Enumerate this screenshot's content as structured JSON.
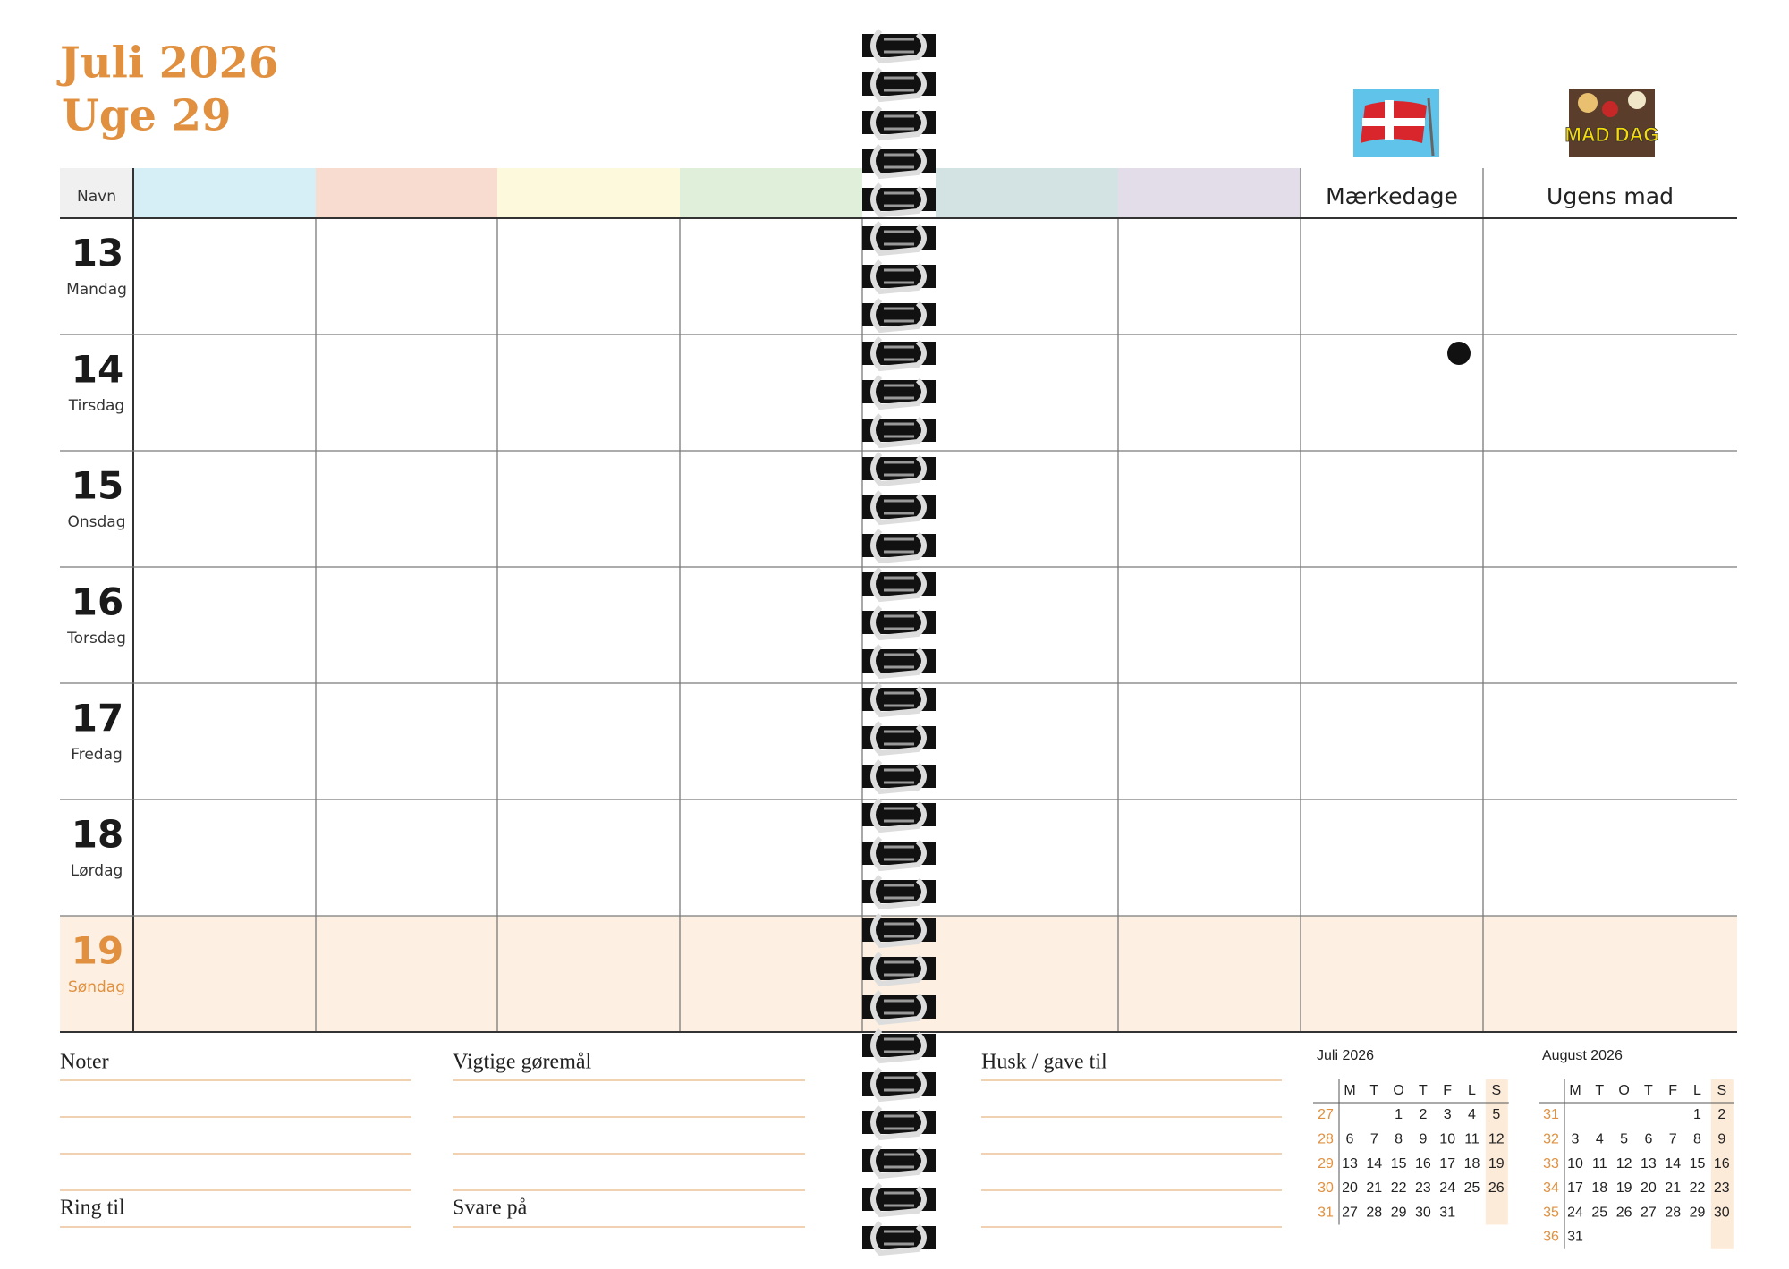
{
  "header": {
    "month": "Juli 2026",
    "week": "Uge 29",
    "name_label": "Navn",
    "columns": [
      "Mærkedage",
      "Ugens mad"
    ],
    "food_icon_text": "MAD DAG"
  },
  "days": [
    {
      "number": 13,
      "name": "Mandag"
    },
    {
      "number": 14,
      "name": "Tirsdag"
    },
    {
      "number": 15,
      "name": "Onsdag"
    },
    {
      "number": 16,
      "name": "Torsdag"
    },
    {
      "number": 17,
      "name": "Fredag"
    },
    {
      "number": 18,
      "name": "Lørdag"
    },
    {
      "number": 19,
      "name": "Søndag"
    }
  ],
  "notes": {
    "noter": "Noter",
    "ring_til": "Ring til",
    "vigtige": "Vigtige gøremål",
    "svare": "Svare på",
    "husk": "Husk / gave til"
  },
  "mini_calendars": [
    {
      "title": "Juli 2026",
      "weekdays": [
        "M",
        "T",
        "O",
        "T",
        "F",
        "L",
        "S"
      ],
      "weeks": [
        {
          "number": 27,
          "days": [
            null,
            null,
            1,
            2,
            3,
            4,
            5
          ]
        },
        {
          "number": 28,
          "days": [
            6,
            7,
            8,
            9,
            10,
            11,
            12
          ]
        },
        {
          "number": 29,
          "days": [
            13,
            14,
            15,
            16,
            17,
            18,
            19
          ]
        },
        {
          "number": 30,
          "days": [
            20,
            21,
            22,
            23,
            24,
            25,
            26
          ]
        },
        {
          "number": 31,
          "days": [
            27,
            28,
            29,
            30,
            31
          ]
        }
      ]
    },
    {
      "title": "August 2026",
      "weekdays": [
        "M",
        "T",
        "O",
        "T",
        "F",
        "L",
        "S"
      ],
      "weeks": [
        {
          "number": 31,
          "days": [
            null,
            null,
            null,
            null,
            null,
            1,
            2
          ]
        },
        {
          "number": 32,
          "days": [
            3,
            4,
            5,
            6,
            7,
            8,
            9
          ]
        },
        {
          "number": 33,
          "days": [
            10,
            11,
            12,
            13,
            14,
            15,
            16
          ]
        },
        {
          "number": 34,
          "days": [
            17,
            18,
            19,
            20,
            21,
            22,
            23
          ]
        },
        {
          "number": 35,
          "days": [
            24,
            25,
            26,
            27,
            28,
            29,
            30
          ]
        },
        {
          "number": 36,
          "days": [
            31
          ]
        }
      ]
    }
  ]
}
